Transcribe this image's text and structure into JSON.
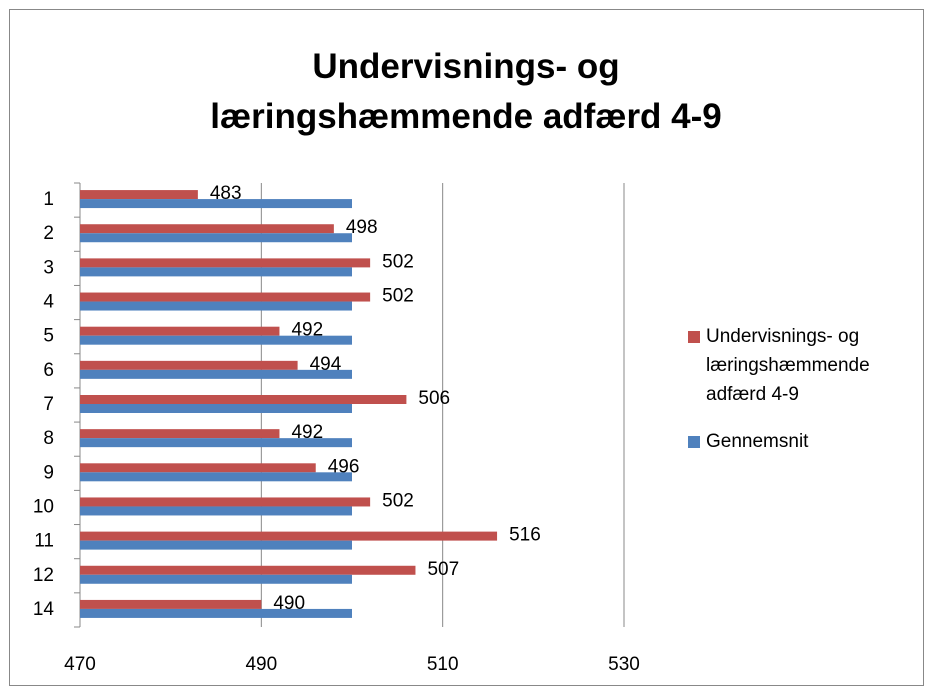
{
  "chart_data": {
    "type": "bar",
    "orientation": "horizontal",
    "title": "Undervisnings- og læringshæmmende adfærd 4-9",
    "categories": [
      "1",
      "2",
      "3",
      "4",
      "5",
      "6",
      "7",
      "8",
      "9",
      "10",
      "11",
      "12",
      "14"
    ],
    "series": [
      {
        "name": "Undervisnings- og læringshæmmende adfærd 4-9",
        "color": "#c0504d",
        "values": [
          483,
          498,
          502,
          502,
          492,
          494,
          506,
          492,
          496,
          502,
          516,
          507,
          490
        ],
        "data_labels": true
      },
      {
        "name": "Gennemsnit",
        "color": "#4f81bd",
        "values": [
          500,
          500,
          500,
          500,
          500,
          500,
          500,
          500,
          500,
          500,
          500,
          500,
          500
        ],
        "data_labels": false
      }
    ],
    "xlim": [
      470,
      530
    ],
    "xticks": [
      470,
      490,
      510,
      530
    ],
    "grid": true,
    "legend": "right"
  }
}
